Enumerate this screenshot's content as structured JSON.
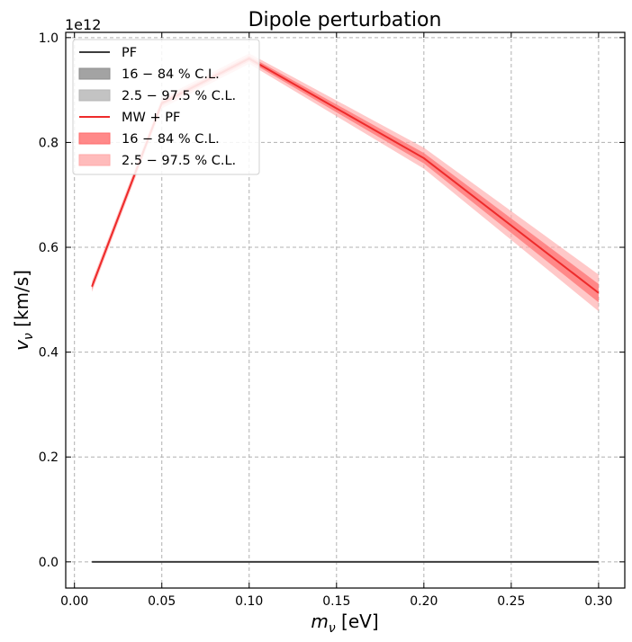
{
  "chart_data": {
    "type": "line",
    "title": "Dipole perturbation",
    "xlabel": "m_ν [eV]",
    "xlabel_main": "m",
    "xlabel_sub": "ν",
    "xlabel_unit": " [eV]",
    "ylabel_main": "v",
    "ylabel_sub": "ν",
    "ylabel_unit": " [km/s]",
    "y_offset_text": "1e12",
    "xlim": [
      -0.005,
      0.315
    ],
    "ylim": [
      -0.05,
      1.01
    ],
    "y_scale_note": "values in units of 1e12",
    "xticks": [
      "0.00",
      "0.05",
      "0.10",
      "0.15",
      "0.20",
      "0.25",
      "0.30"
    ],
    "yticks": [
      "0.0",
      "0.2",
      "0.4",
      "0.6",
      "0.8",
      "1.0"
    ],
    "grid": true,
    "legend_position": "top-left",
    "x": [
      0.01,
      0.05,
      0.1,
      0.2,
      0.3
    ],
    "series": [
      {
        "name": "PF",
        "color": "#3c3c3c",
        "values": [
          0.0,
          0.0,
          0.0,
          0.0,
          0.0
        ],
        "band_16_84": {
          "lower": [
            0.0,
            0.0,
            0.0,
            0.0,
            0.0
          ],
          "upper": [
            0.0,
            0.0,
            0.0,
            0.0,
            0.0
          ]
        },
        "band_2_5_97_5": {
          "lower": [
            0.0,
            0.0,
            0.0,
            0.0,
            0.0
          ],
          "upper": [
            0.0,
            0.0,
            0.0,
            0.0,
            0.0
          ]
        }
      },
      {
        "name": "MW + PF",
        "color": "#ee2b2b",
        "values": [
          0.525,
          0.875,
          0.96,
          0.77,
          0.513
        ],
        "band_16_84": {
          "lower": [
            0.52,
            0.87,
            0.955,
            0.76,
            0.495
          ],
          "upper": [
            0.53,
            0.88,
            0.965,
            0.78,
            0.53
          ]
        },
        "band_2_5_97_5": {
          "lower": [
            0.515,
            0.865,
            0.95,
            0.75,
            0.478
          ],
          "upper": [
            0.535,
            0.885,
            0.97,
            0.79,
            0.548
          ]
        }
      }
    ],
    "legend": [
      {
        "label": "PF",
        "kind": "line",
        "color": "#3c3c3c"
      },
      {
        "label": "16 − 84 % C.L.",
        "kind": "patch",
        "color": "#8c8c8c"
      },
      {
        "label": "2.5 − 97.5 % C.L.",
        "kind": "patch",
        "color": "#b4b4b4"
      },
      {
        "label": "MW + PF",
        "kind": "line",
        "color": "#ee2b2b"
      },
      {
        "label": "16 − 84 % C.L.",
        "kind": "patch",
        "color": "#ff6b6b"
      },
      {
        "label": "2.5 − 97.5 % C.L.",
        "kind": "patch",
        "color": "#ffaaaa"
      }
    ]
  }
}
